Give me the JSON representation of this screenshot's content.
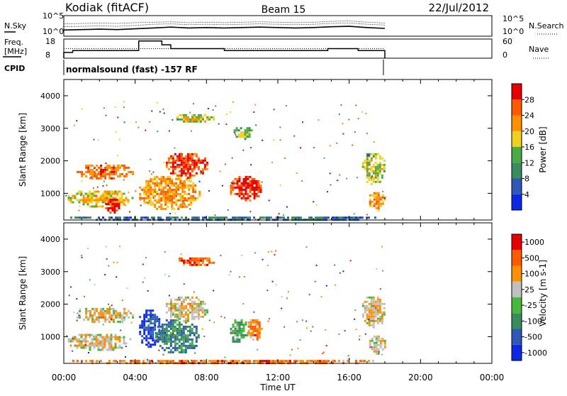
{
  "header": {
    "station": "Kodiak (fitACF)",
    "beam": "Beam 15",
    "date": "22/Jul/2012"
  },
  "chart_data": [
    {
      "type": "line",
      "panel": "noise",
      "left_label": "N.Sky",
      "right_label": "N.Search",
      "left_ticks": [
        "10^5",
        "10^0"
      ],
      "right_ticks": [
        "10^5",
        "10^0"
      ],
      "x": [
        0,
        1,
        2,
        3,
        4,
        5,
        6,
        7,
        8,
        9,
        10,
        11,
        12,
        13,
        14,
        15,
        16,
        17,
        18
      ],
      "series": [
        {
          "values": [
            2.3,
            2.4,
            2.5,
            2.4,
            2.6,
            2.9,
            3.0,
            2.8,
            2.9,
            2.8,
            2.9,
            3.0,
            2.9,
            2.8,
            2.9,
            3.1,
            3.2,
            2.9,
            2.7
          ]
        },
        {
          "values": [
            1.5,
            1.6,
            1.7,
            1.6,
            1.8,
            2.0,
            2.2,
            2.0,
            2.1,
            2.0,
            2.1,
            2.2,
            2.1,
            2.0,
            2.1,
            2.3,
            2.4,
            2.1,
            1.9
          ]
        },
        {
          "values": [
            3.0,
            3.1,
            3.2,
            3.1,
            3.3,
            3.4,
            3.5,
            3.3,
            3.4,
            3.3,
            3.4,
            3.5,
            3.4,
            3.3,
            3.4,
            3.6,
            3.7,
            3.4,
            3.2
          ]
        }
      ]
    },
    {
      "type": "line",
      "panel": "frequency",
      "left_label_1": "Freq.",
      "left_label_2": "[MHz]",
      "right_label": "Nave",
      "left_ticks": [
        "18",
        "8"
      ],
      "right_ticks": [
        "60",
        "0"
      ],
      "freq_steps": [
        [
          0,
          11
        ],
        [
          0.5,
          12
        ],
        [
          3.7,
          12
        ],
        [
          4.2,
          17
        ],
        [
          5.5,
          15
        ],
        [
          6.0,
          13
        ],
        [
          9.0,
          12
        ],
        [
          14.0,
          12
        ],
        [
          14.8,
          13
        ],
        [
          16.5,
          12
        ],
        [
          18,
          12
        ]
      ],
      "nave_steps": [
        [
          0,
          30
        ],
        [
          18,
          30
        ]
      ]
    },
    {
      "type": "text",
      "panel": "cpid",
      "label": "CPID",
      "program": "normalsound (fast) -157 RF"
    },
    {
      "type": "heatmap",
      "panel": "power",
      "ylabel": "Slant Range [km]",
      "yticks": [
        "4000",
        "3000",
        "2000",
        "1000"
      ],
      "ylim": [
        180,
        4500
      ],
      "colorbar_label": "Power [dB]",
      "colorbar_ticks": [
        "28",
        "24",
        "20",
        "16",
        "12",
        "8",
        "4"
      ],
      "colors": [
        "#0b28e6",
        "#2e58b8",
        "#3a8c5e",
        "#4aaa46",
        "#f0d020",
        "#ff9000",
        "#ff5a00",
        "#e60000"
      ],
      "regions": [
        {
          "t0": 0.6,
          "t1": 3.9,
          "r0": 1450,
          "r1": 1950,
          "level": 0.72
        },
        {
          "t0": 0.1,
          "t1": 3.8,
          "r0": 600,
          "r1": 1150,
          "level": 0.55
        },
        {
          "t0": 2.2,
          "t1": 3.1,
          "r0": 400,
          "r1": 900,
          "level": 0.86
        },
        {
          "t0": 4.1,
          "t1": 7.6,
          "r0": 500,
          "r1": 1600,
          "level": 0.64
        },
        {
          "t0": 5.6,
          "t1": 8.1,
          "r0": 1500,
          "r1": 2300,
          "level": 0.82
        },
        {
          "t0": 6.2,
          "t1": 8.4,
          "r0": 3200,
          "r1": 3500,
          "level": 0.48
        },
        {
          "t0": 9.2,
          "t1": 11.1,
          "r0": 800,
          "r1": 1600,
          "level": 0.84
        },
        {
          "t0": 9.4,
          "t1": 10.6,
          "r0": 2700,
          "r1": 3100,
          "level": 0.38
        },
        {
          "t0": 16.6,
          "t1": 18.0,
          "r0": 1300,
          "r1": 2300,
          "level": 0.46
        },
        {
          "t0": 17.0,
          "t1": 18.0,
          "r0": 500,
          "r1": 1100,
          "level": 0.62
        },
        {
          "t0": 0.0,
          "t1": 18.0,
          "r0": 180,
          "r1": 350,
          "level": 0.18
        }
      ]
    },
    {
      "type": "heatmap",
      "panel": "velocity",
      "ylabel": "Slant Range [km]",
      "yticks": [
        "4000",
        "3000",
        "2000",
        "1000"
      ],
      "ylim": [
        180,
        4500
      ],
      "xlabel": "Time UT",
      "xticks": [
        "00:00",
        "04:00",
        "08:00",
        "12:00",
        "16:00",
        "20:00",
        "00:00"
      ],
      "xlim": [
        0,
        24
      ],
      "colorbar_label": "Velocity [m s-1]",
      "colorbar_ticks": [
        "1000",
        "500",
        "100",
        "25",
        "-25",
        "-100",
        "-500",
        "-1000"
      ],
      "colors": [
        "#0b28e6",
        "#2e58b8",
        "#3a8c5e",
        "#46b83c",
        "#c0c0c0",
        "#ff9000",
        "#ff5a00",
        "#e60000"
      ],
      "regions": [
        {
          "t0": 0.6,
          "t1": 3.9,
          "r0": 1450,
          "r1": 1950,
          "level": 0.55
        },
        {
          "t0": 0.1,
          "t1": 3.8,
          "r0": 600,
          "r1": 1150,
          "level": 0.55
        },
        {
          "t0": 4.1,
          "t1": 5.4,
          "r0": 700,
          "r1": 1900,
          "level": 0.08
        },
        {
          "t0": 5.0,
          "t1": 7.6,
          "r0": 500,
          "r1": 1600,
          "level": 0.25
        },
        {
          "t0": 5.6,
          "t1": 8.1,
          "r0": 1500,
          "r1": 2300,
          "level": 0.55
        },
        {
          "t0": 6.2,
          "t1": 8.4,
          "r0": 3200,
          "r1": 3500,
          "level": 0.75
        },
        {
          "t0": 9.2,
          "t1": 10.3,
          "r0": 800,
          "r1": 1600,
          "level": 0.35
        },
        {
          "t0": 10.2,
          "t1": 11.1,
          "r0": 900,
          "r1": 1600,
          "level": 0.68
        },
        {
          "t0": 16.6,
          "t1": 18.0,
          "r0": 1300,
          "r1": 2300,
          "level": 0.55
        },
        {
          "t0": 17.0,
          "t1": 18.0,
          "r0": 500,
          "r1": 1100,
          "level": 0.55
        },
        {
          "t0": 0.0,
          "t1": 18.0,
          "r0": 180,
          "r1": 350,
          "level": 0.7
        }
      ]
    }
  ]
}
